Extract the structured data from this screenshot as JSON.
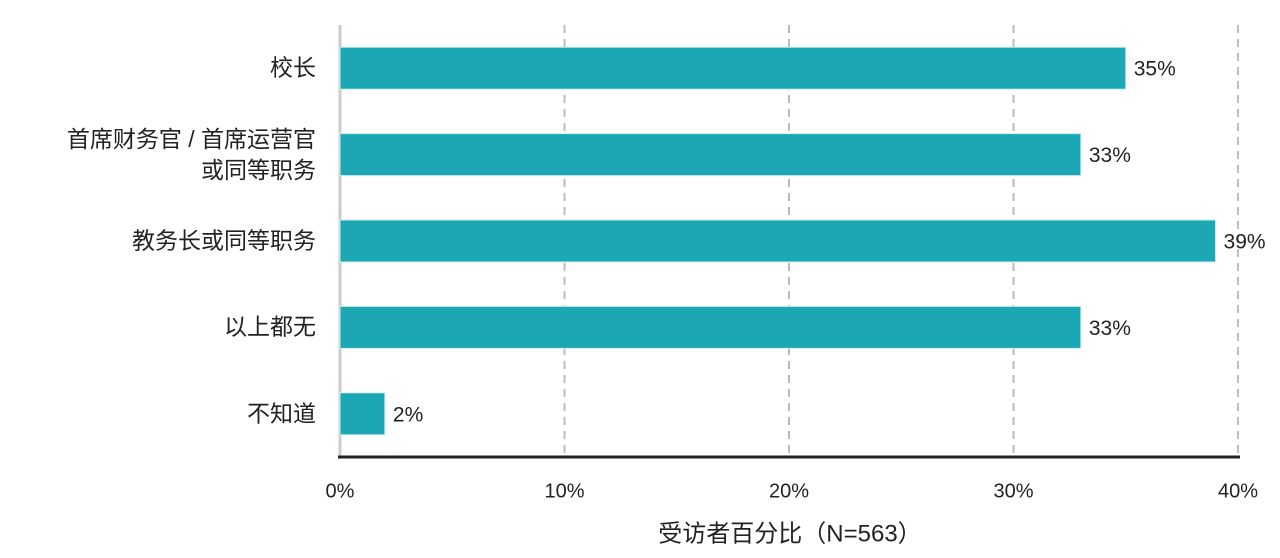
{
  "chart_data": {
    "type": "hbar",
    "categories": [
      "校长",
      "首席财务官 / 首席运营官\n或同等职务",
      "教务长或同等职务",
      "以上都无",
      "不知道"
    ],
    "values": [
      35,
      33,
      39,
      33,
      2
    ],
    "value_labels": [
      "35%",
      "33%",
      "39%",
      "33%",
      "2%"
    ],
    "color": "#1ba7b3",
    "xlabel": "受访者百分比（N=563）",
    "xlim": [
      0,
      40
    ],
    "xticks": [
      {
        "value": 0,
        "label": "0%"
      },
      {
        "value": 10,
        "label": "10%"
      },
      {
        "value": 20,
        "label": "20%"
      },
      {
        "value": 30,
        "label": "30%"
      },
      {
        "value": 40,
        "label": "40%"
      }
    ],
    "grid": true
  }
}
